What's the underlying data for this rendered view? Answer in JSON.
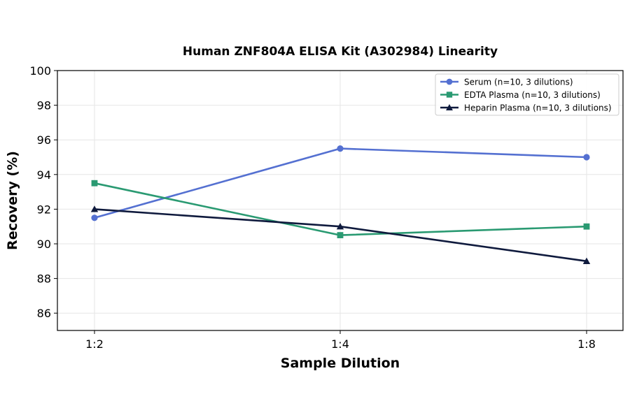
{
  "chart_data": {
    "type": "line",
    "title": "Human ZNF804A ELISA Kit (A302984) Linearity",
    "xlabel": "Sample Dilution",
    "ylabel": "Recovery (%)",
    "categories": [
      "1:2",
      "1:4",
      "1:8"
    ],
    "ylim": [
      85,
      100
    ],
    "yticks": [
      86,
      88,
      90,
      92,
      94,
      96,
      98,
      100
    ],
    "grid": true,
    "legend_position": "top-right",
    "series": [
      {
        "name": "Serum (n=10, 3 dilutions)",
        "values": [
          91.5,
          95.5,
          95.0
        ],
        "color": "#5470d1",
        "marker": "circle"
      },
      {
        "name": "EDTA Plasma (n=10, 3 dilutions)",
        "values": [
          93.5,
          90.5,
          91.0
        ],
        "color": "#2a9a72",
        "marker": "square"
      },
      {
        "name": "Heparin Plasma (n=10, 3 dilutions)",
        "values": [
          92.0,
          91.0,
          89.0
        ],
        "color": "#0f1a3d",
        "marker": "triangle"
      }
    ]
  }
}
